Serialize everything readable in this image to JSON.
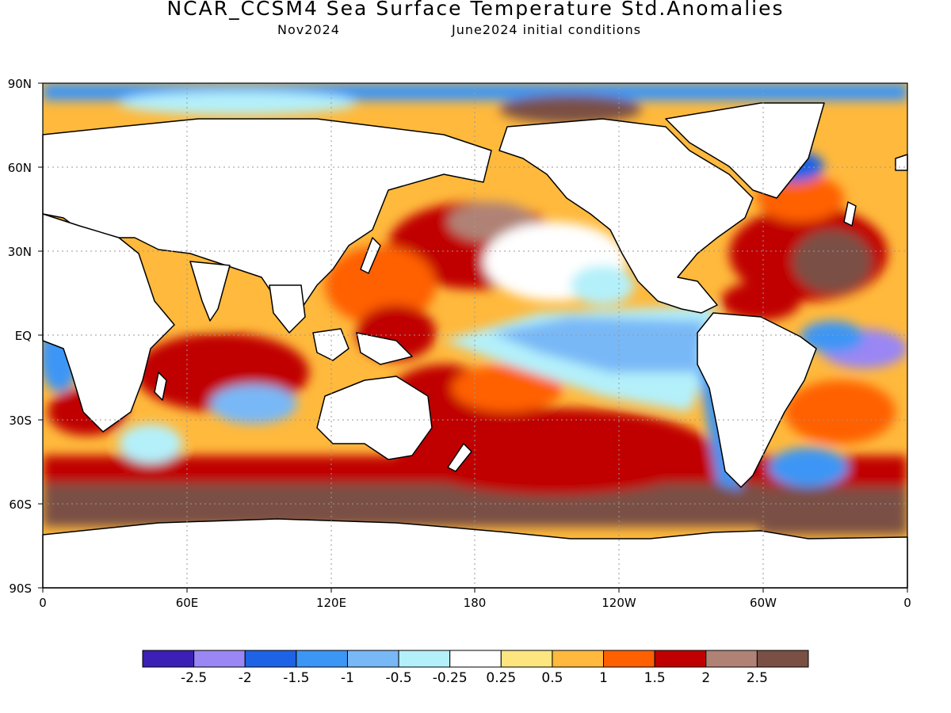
{
  "title": "NCAR_CCSM4 Sea Surface Temperature Std.Anomalies",
  "subtitle_left": "Nov2024",
  "subtitle_right": "June2024 initial conditions",
  "y_ticks": [
    "90N",
    "60N",
    "30N",
    "EQ",
    "30S",
    "60S",
    "90S"
  ],
  "x_ticks": [
    "0",
    "60E",
    "120E",
    "180",
    "120W",
    "60W",
    "0"
  ],
  "colorbar": {
    "colors": [
      "#3c1fb4",
      "#9a86f5",
      "#1e62e6",
      "#3c96f5",
      "#78b8f7",
      "#b4f0fa",
      "#ffffff",
      "#fde680",
      "#ffb93c",
      "#ff6000",
      "#c00000",
      "#b08276",
      "#7a5044"
    ],
    "labels": [
      "-2.5",
      "-2",
      "-1.5",
      "-1",
      "-0.5",
      "-0.25",
      "0.25",
      "0.5",
      "1",
      "1.5",
      "2",
      "2.5"
    ]
  }
}
